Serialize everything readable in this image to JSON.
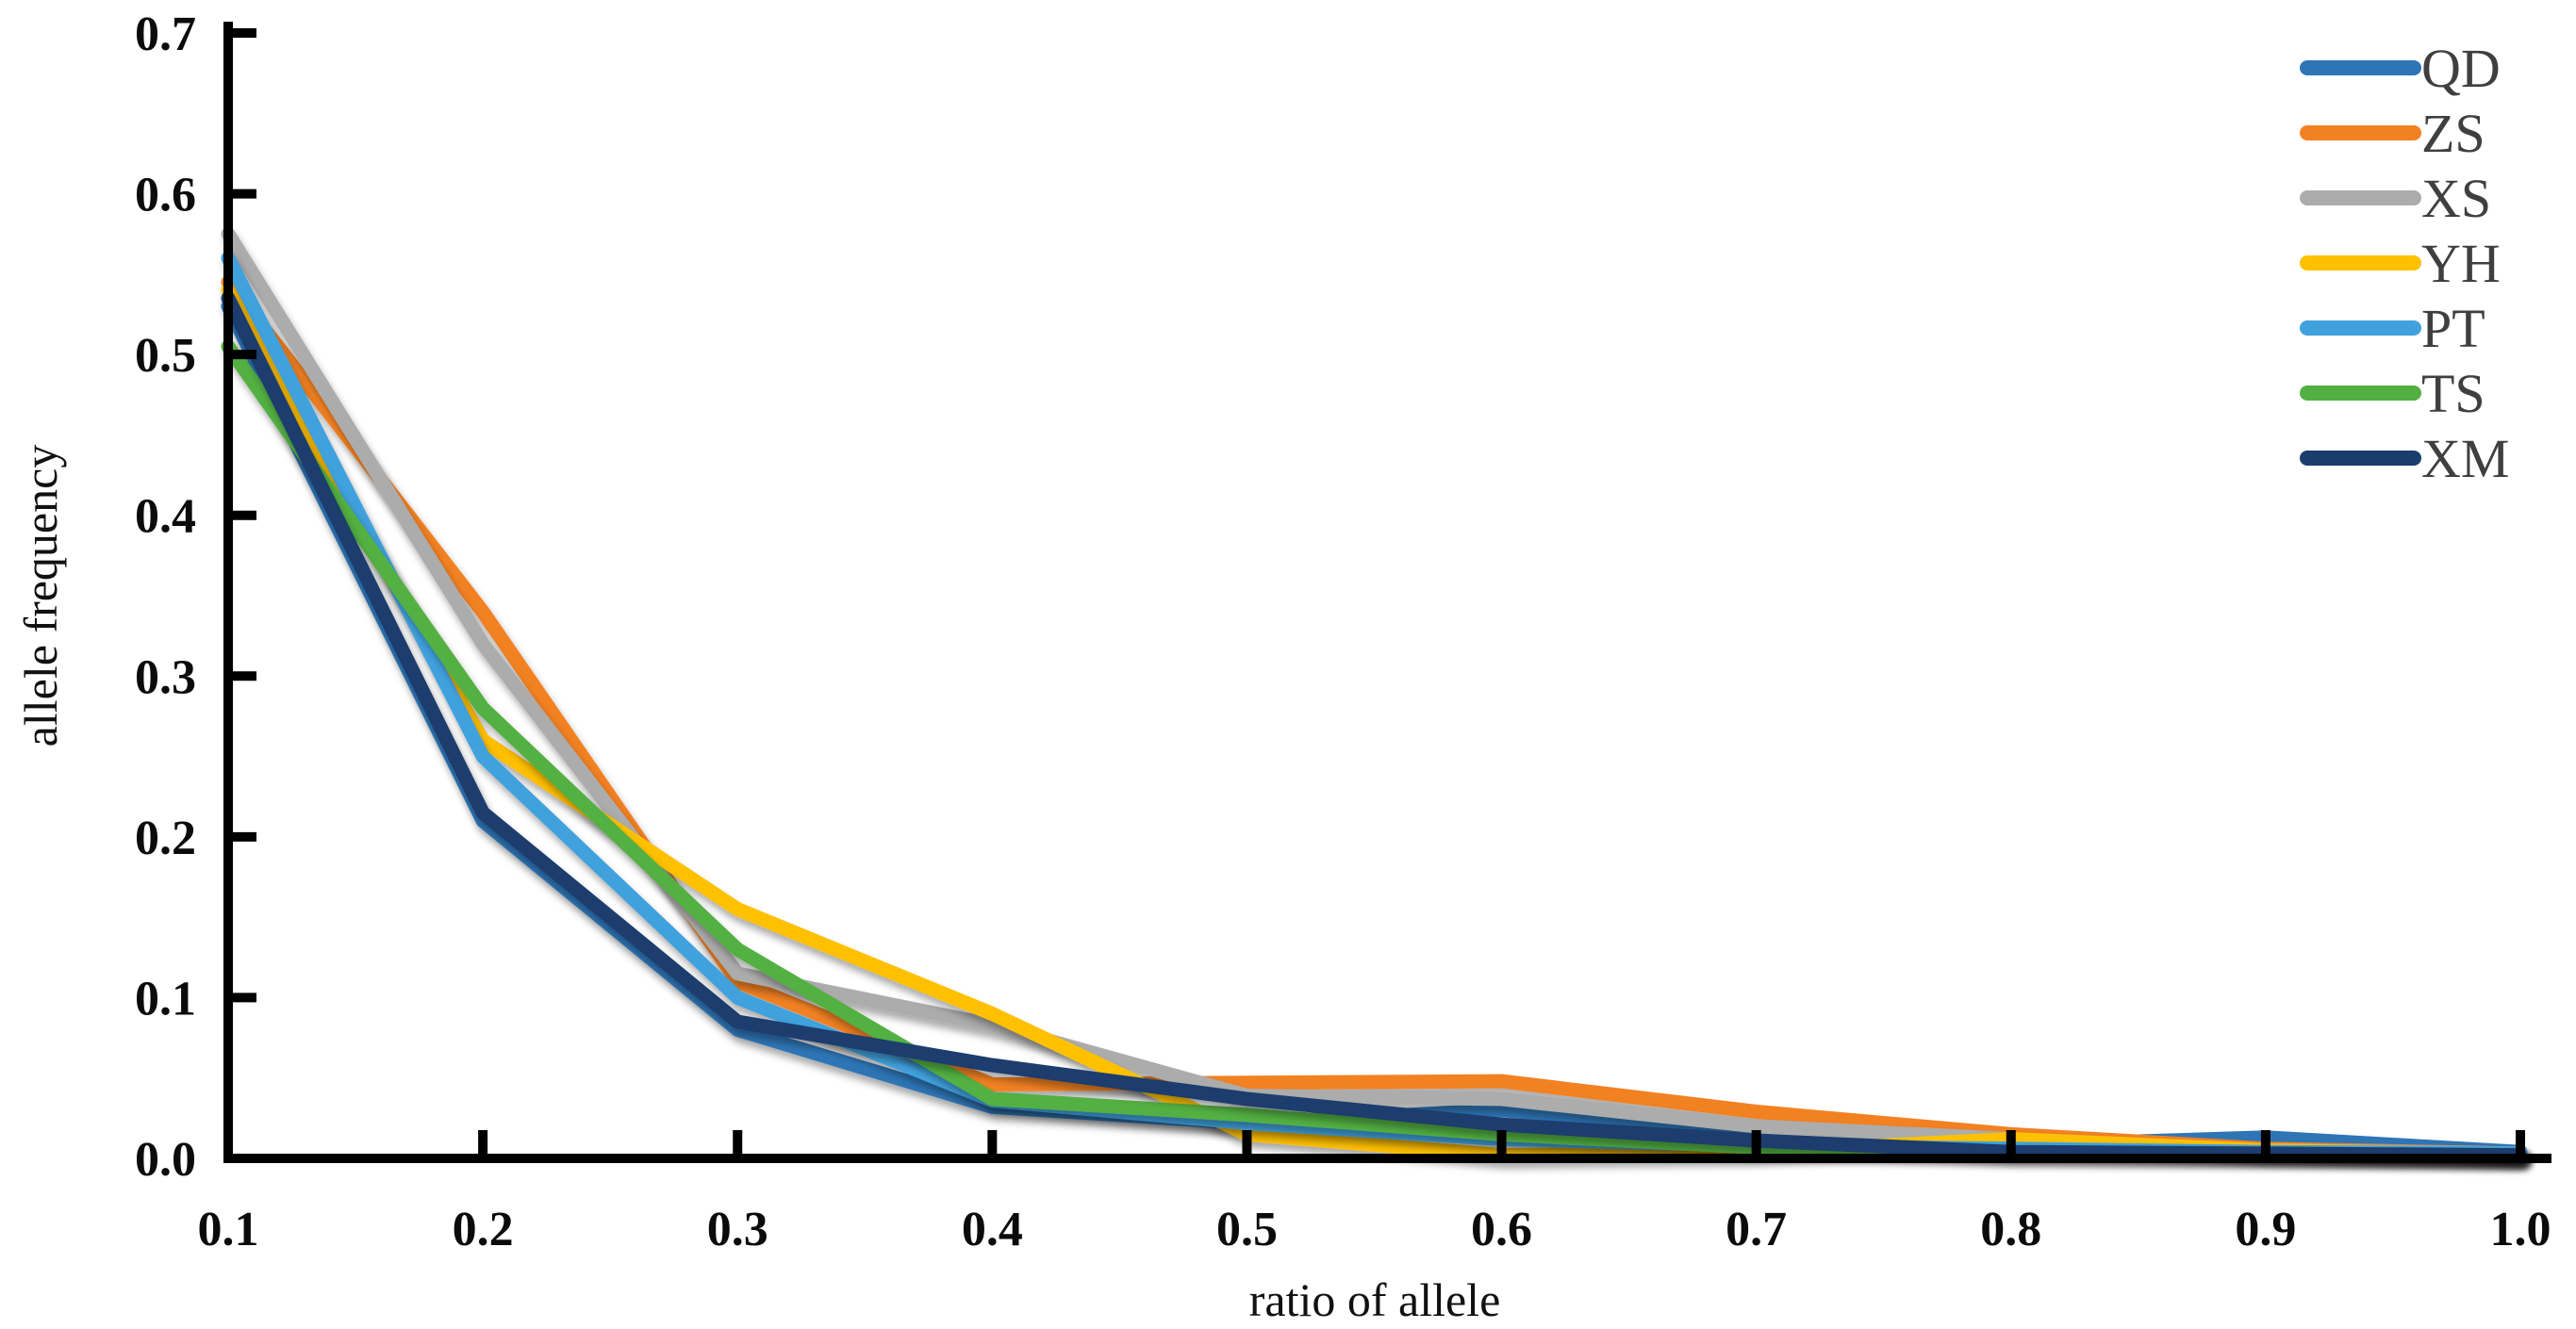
{
  "figure": {
    "background": "#ffffff",
    "axis_color": "#000000",
    "tick_label_color": "#0b0b0b",
    "legend_text_color": "#3f3f3f"
  },
  "chart_data": {
    "type": "line",
    "title": "",
    "xlabel": "ratio of allele",
    "ylabel": "allele frequency",
    "xlim": [
      0.1,
      1.0
    ],
    "ylim": [
      0.0,
      0.7
    ],
    "grid": false,
    "legend_position": "top-right",
    "x": [
      0.1,
      0.2,
      0.3,
      0.4,
      0.5,
      0.6,
      0.7,
      0.8,
      0.9,
      1.0
    ],
    "x_tick_labels": [
      "0.1",
      "0.2",
      "0.3",
      "0.4",
      "0.5",
      "0.6",
      "0.7",
      "0.8",
      "0.9",
      "1.0"
    ],
    "y_ticks": [
      0.0,
      0.1,
      0.2,
      0.3,
      0.4,
      0.5,
      0.6,
      0.7
    ],
    "y_tick_labels": [
      "0.0",
      "0.1",
      "0.2",
      "0.3",
      "0.4",
      "0.5",
      "0.6",
      "0.7"
    ],
    "series": [
      {
        "name": "QD",
        "color": "#2E75B6",
        "values": [
          0.53,
          0.21,
          0.08,
          0.032,
          0.022,
          0.03,
          0.017,
          0.008,
          0.013,
          0.004
        ]
      },
      {
        "name": "ZS",
        "color": "#F28124",
        "values": [
          0.545,
          0.34,
          0.11,
          0.046,
          0.047,
          0.048,
          0.029,
          0.015,
          0.006,
          0.003
        ]
      },
      {
        "name": "XS",
        "color": "#ACACAC",
        "values": [
          0.575,
          0.32,
          0.115,
          0.083,
          0.039,
          0.037,
          0.02,
          0.012,
          0.005,
          0.003
        ]
      },
      {
        "name": "YH",
        "color": "#FFC000",
        "values": [
          0.54,
          0.26,
          0.155,
          0.09,
          0.015,
          0.002,
          0.004,
          0.012,
          0.005,
          0.002
        ]
      },
      {
        "name": "PT",
        "color": "#41A1DD",
        "values": [
          0.56,
          0.25,
          0.1,
          0.036,
          0.022,
          0.012,
          0.008,
          0.006,
          0.004,
          0.003
        ]
      },
      {
        "name": "TS",
        "color": "#52B043",
        "values": [
          0.505,
          0.28,
          0.13,
          0.037,
          0.027,
          0.015,
          0.007,
          0.004,
          0.003,
          0.002
        ]
      },
      {
        "name": "XM",
        "color": "#1B3D6D",
        "values": [
          0.535,
          0.215,
          0.085,
          0.058,
          0.037,
          0.021,
          0.011,
          0.004,
          0.003,
          0.002
        ]
      }
    ]
  }
}
